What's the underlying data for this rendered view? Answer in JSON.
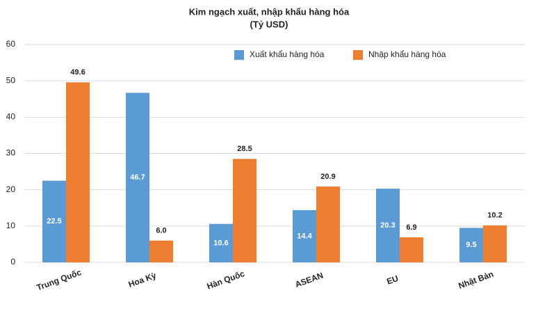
{
  "chart_data": {
    "type": "bar",
    "title": "Kim ngạch xuất, nhập khẩu hàng hóa",
    "subtitle": "(Tỷ USD)",
    "categories": [
      "Trung Quốc",
      "Hoa Kỳ",
      "Hàn Quốc",
      "ASEAN",
      "EU",
      "Nhật Bản"
    ],
    "series": [
      {
        "name": "Xuất khẩu hàng hóa",
        "color": "#5b9bd5",
        "values": [
          22.5,
          46.7,
          10.6,
          14.4,
          20.3,
          9.5
        ],
        "value_labels": [
          "22.5",
          "46.7",
          "10.6",
          "14.4",
          "20.3",
          "9.5"
        ]
      },
      {
        "name": "Nhập khẩu hàng hóa",
        "color": "#ed7d31",
        "values": [
          49.6,
          6,
          28.5,
          20.9,
          6.9,
          10.2
        ],
        "value_labels": [
          "49.6",
          "6.0",
          "28.5",
          "20.9",
          "6.9",
          "10.2"
        ]
      }
    ],
    "ylim": [
      0,
      60
    ],
    "yticks": [
      0,
      10,
      20,
      30,
      40,
      50,
      60
    ],
    "grid": true,
    "legend": "top"
  }
}
